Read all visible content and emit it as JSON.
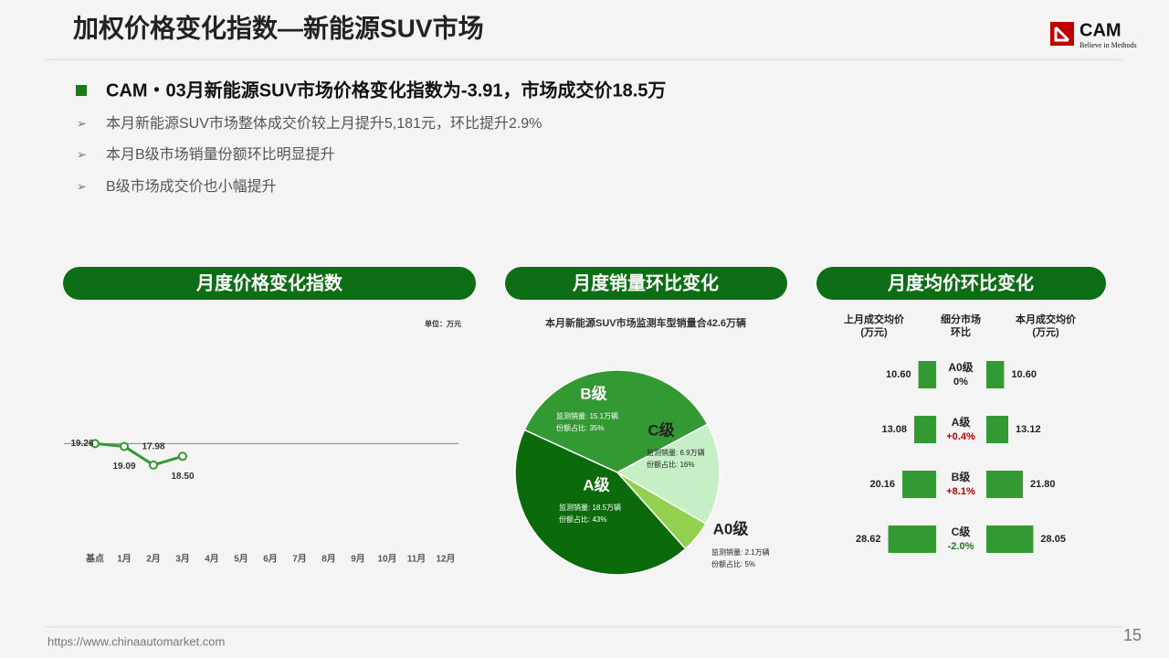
{
  "header": {
    "title": "加权价格变化指数—新能源SUV市场",
    "logo": "CAM",
    "slogan": "Believe in Methods"
  },
  "headline": "CAM・03月新能源SUV市场价格变化指数为-3.91，市场成交价18.5万",
  "bullets": [
    "本月新能源SUV市场整体成交价较上月提升5,181元，环比提升2.9%",
    "本月B级市场销量份额环比明显提升",
    "B级市场成交价也小幅提升"
  ],
  "chart_data": [
    {
      "type": "line",
      "title": "月度价格变化指数",
      "unit": "单位：万元",
      "categories": [
        "基点",
        "1月",
        "2月",
        "3月",
        "4月",
        "5月",
        "6月",
        "7月",
        "8月",
        "9月",
        "10月",
        "11月",
        "12月"
      ],
      "values": [
        19.26,
        19.09,
        17.98,
        18.5,
        null,
        null,
        null,
        null,
        null,
        null,
        null,
        null,
        null
      ],
      "value_labels": [
        "19.26",
        "19.09",
        "17.98",
        "18.50",
        null,
        null,
        null,
        null,
        null,
        null,
        null,
        null,
        null
      ],
      "color": "#339933",
      "reference_line": 19.26,
      "ylim": [
        13,
        26
      ]
    },
    {
      "type": "pie",
      "title": "月度销量环比变化",
      "subtitle": "本月新能源SUV市场监测车型销量合42.6万辆",
      "categories": [
        "B级",
        "C级",
        "A0级",
        "A级"
      ],
      "values": [
        35,
        16,
        5,
        43
      ],
      "colors": [
        "#339933",
        "#c6efc6",
        "#92d050",
        "#0b6b0b"
      ],
      "sales_labels": [
        "监测销量: 15.1万辆",
        "监测销量: 6.9万辆",
        "监测销量: 2.1万辆",
        "监测销量: 18.5万辆"
      ],
      "value_labels": [
        "份额占比: 35%",
        "份额占比: 16%",
        "份额占比: 5%",
        "份额占比: 43%"
      ]
    },
    {
      "type": "paired_bar",
      "title": "月度均价环比变化",
      "categories": [
        "A0级",
        "A级",
        "B级",
        "C级"
      ],
      "xlim": [
        0,
        30
      ],
      "color": "#339933",
      "series": [
        {
          "name": "上月成交均价\n(万元)",
          "values": [
            10.6,
            13.08,
            20.16,
            28.62
          ],
          "value_labels": [
            "10.60",
            "13.08",
            "20.16",
            "28.62"
          ]
        },
        {
          "name": "细分市场\n环比",
          "values": [
            0,
            0.4,
            8.1,
            -2.0
          ],
          "value_labels": [
            "0%",
            "+0.4%",
            "+8.1%",
            "-2.0%"
          ]
        },
        {
          "name": "本月成交均价\n(万元)",
          "values": [
            10.6,
            13.12,
            21.8,
            28.05
          ],
          "value_labels": [
            "10.60",
            "13.12",
            "21.80",
            "28.05"
          ]
        }
      ]
    }
  ],
  "footer": {
    "url": "https://www.chinaautomarket.com",
    "page": "15"
  }
}
